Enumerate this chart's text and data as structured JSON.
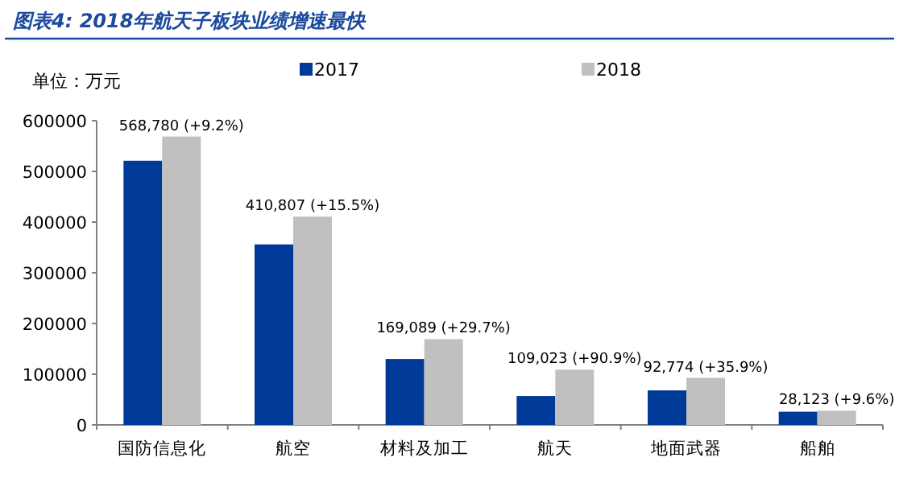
{
  "chart_data": {
    "type": "bar",
    "title": "图表4:  2018年航天子板块业绩增速最快",
    "ylabel": "单位：万元",
    "categories": [
      "国防信息化",
      "航空",
      "材料及加工",
      "航天",
      "地面武器",
      "船舶"
    ],
    "series": [
      {
        "name": "2017",
        "color": "#003a99",
        "values": [
          521000,
          356000,
          130000,
          57000,
          68000,
          26000
        ]
      },
      {
        "name": "2018",
        "color": "#c0c0c0",
        "values": [
          568780,
          410807,
          169089,
          109023,
          92774,
          28123
        ],
        "value_labels": [
          "568,780 (+9.2%)",
          "410,807 (+15.5%)",
          "169,089 (+29.7%)",
          "109,023 (+90.9%)",
          "92,774 (+35.9%)",
          "28,123 (+9.6%)"
        ]
      }
    ],
    "ylim": [
      0,
      600000
    ],
    "yticks": [
      0,
      100000,
      200000,
      300000,
      400000,
      500000,
      600000
    ],
    "grid": false,
    "legend": "top"
  }
}
